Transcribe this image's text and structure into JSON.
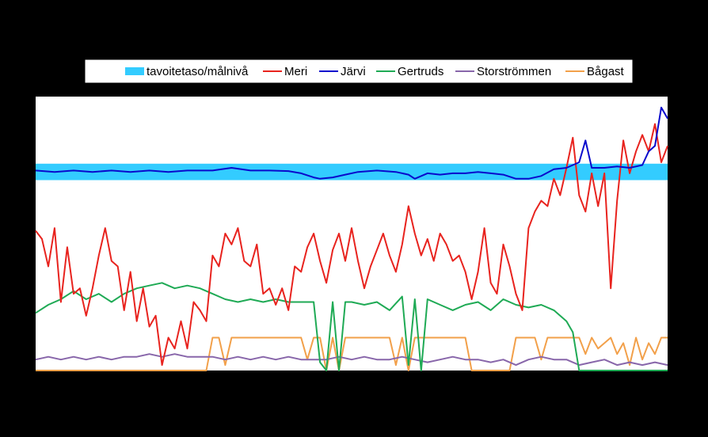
{
  "chart_data": {
    "type": "line",
    "title": "",
    "xlabel": "",
    "ylabel": "",
    "x_tick_labels": [],
    "y_tick_labels": [],
    "legend_position": "top",
    "target_band": {
      "name": "tavoitetaso/målnivå",
      "color": "#33CCFF",
      "range": [
        0.695,
        0.755
      ]
    },
    "x_range": [
      0,
      100
    ],
    "y_range": [
      0,
      1
    ],
    "series": [
      {
        "name": "Meri",
        "color": "#E8231E",
        "points": [
          [
            0,
            0.51
          ],
          [
            1,
            0.48
          ],
          [
            2,
            0.38
          ],
          [
            3,
            0.52
          ],
          [
            4,
            0.25
          ],
          [
            5,
            0.45
          ],
          [
            6,
            0.28
          ],
          [
            7,
            0.3
          ],
          [
            8,
            0.2
          ],
          [
            9,
            0.3
          ],
          [
            10,
            0.42
          ],
          [
            11,
            0.52
          ],
          [
            12,
            0.4
          ],
          [
            13,
            0.38
          ],
          [
            14,
            0.22
          ],
          [
            15,
            0.36
          ],
          [
            16,
            0.18
          ],
          [
            17,
            0.3
          ],
          [
            18,
            0.16
          ],
          [
            19,
            0.2
          ],
          [
            20,
            0.02
          ],
          [
            21,
            0.12
          ],
          [
            22,
            0.08
          ],
          [
            23,
            0.18
          ],
          [
            24,
            0.08
          ],
          [
            25,
            0.25
          ],
          [
            26,
            0.22
          ],
          [
            27,
            0.18
          ],
          [
            28,
            0.42
          ],
          [
            29,
            0.38
          ],
          [
            30,
            0.5
          ],
          [
            31,
            0.46
          ],
          [
            32,
            0.52
          ],
          [
            33,
            0.4
          ],
          [
            34,
            0.38
          ],
          [
            35,
            0.46
          ],
          [
            36,
            0.28
          ],
          [
            37,
            0.3
          ],
          [
            38,
            0.24
          ],
          [
            39,
            0.3
          ],
          [
            40,
            0.22
          ],
          [
            41,
            0.38
          ],
          [
            42,
            0.36
          ],
          [
            43,
            0.45
          ],
          [
            44,
            0.5
          ],
          [
            45,
            0.4
          ],
          [
            46,
            0.32
          ],
          [
            47,
            0.44
          ],
          [
            48,
            0.5
          ],
          [
            49,
            0.4
          ],
          [
            50,
            0.52
          ],
          [
            51,
            0.4
          ],
          [
            52,
            0.3
          ],
          [
            53,
            0.38
          ],
          [
            54,
            0.44
          ],
          [
            55,
            0.5
          ],
          [
            56,
            0.42
          ],
          [
            57,
            0.36
          ],
          [
            58,
            0.46
          ],
          [
            59,
            0.6
          ],
          [
            60,
            0.5
          ],
          [
            61,
            0.42
          ],
          [
            62,
            0.48
          ],
          [
            63,
            0.4
          ],
          [
            64,
            0.5
          ],
          [
            65,
            0.46
          ],
          [
            66,
            0.4
          ],
          [
            67,
            0.42
          ],
          [
            68,
            0.36
          ],
          [
            69,
            0.26
          ],
          [
            70,
            0.36
          ],
          [
            71,
            0.52
          ],
          [
            72,
            0.32
          ],
          [
            73,
            0.28
          ],
          [
            74,
            0.46
          ],
          [
            75,
            0.38
          ],
          [
            76,
            0.28
          ],
          [
            77,
            0.22
          ],
          [
            78,
            0.52
          ],
          [
            79,
            0.58
          ],
          [
            80,
            0.62
          ],
          [
            81,
            0.6
          ],
          [
            82,
            0.7
          ],
          [
            83,
            0.64
          ],
          [
            84,
            0.74
          ],
          [
            85,
            0.85
          ],
          [
            86,
            0.64
          ],
          [
            87,
            0.58
          ],
          [
            88,
            0.72
          ],
          [
            89,
            0.6
          ],
          [
            90,
            0.72
          ],
          [
            91,
            0.3
          ],
          [
            92,
            0.62
          ],
          [
            93,
            0.84
          ],
          [
            94,
            0.72
          ],
          [
            95,
            0.8
          ],
          [
            96,
            0.86
          ],
          [
            97,
            0.8
          ],
          [
            98,
            0.9
          ],
          [
            99,
            0.76
          ],
          [
            100,
            0.82
          ]
        ]
      },
      {
        "name": "Järvi",
        "color": "#0A0ACC",
        "points": [
          [
            0,
            0.73
          ],
          [
            3,
            0.725
          ],
          [
            6,
            0.73
          ],
          [
            9,
            0.725
          ],
          [
            12,
            0.73
          ],
          [
            15,
            0.725
          ],
          [
            18,
            0.73
          ],
          [
            21,
            0.725
          ],
          [
            24,
            0.73
          ],
          [
            28,
            0.73
          ],
          [
            31,
            0.74
          ],
          [
            34,
            0.73
          ],
          [
            37,
            0.73
          ],
          [
            40,
            0.728
          ],
          [
            42,
            0.72
          ],
          [
            44,
            0.705
          ],
          [
            45,
            0.7
          ],
          [
            47,
            0.705
          ],
          [
            49,
            0.715
          ],
          [
            51,
            0.725
          ],
          [
            54,
            0.73
          ],
          [
            57,
            0.725
          ],
          [
            59,
            0.715
          ],
          [
            60,
            0.7
          ],
          [
            62,
            0.72
          ],
          [
            64,
            0.715
          ],
          [
            66,
            0.72
          ],
          [
            68,
            0.72
          ],
          [
            70,
            0.725
          ],
          [
            72,
            0.72
          ],
          [
            74,
            0.715
          ],
          [
            76,
            0.7
          ],
          [
            78,
            0.7
          ],
          [
            80,
            0.71
          ],
          [
            82,
            0.735
          ],
          [
            84,
            0.74
          ],
          [
            86,
            0.76
          ],
          [
            87,
            0.84
          ],
          [
            88,
            0.74
          ],
          [
            90,
            0.74
          ],
          [
            92,
            0.745
          ],
          [
            94,
            0.74
          ],
          [
            96,
            0.75
          ],
          [
            97,
            0.8
          ],
          [
            98,
            0.82
          ],
          [
            99,
            0.96
          ],
          [
            100,
            0.92
          ]
        ]
      },
      {
        "name": "Gertruds",
        "color": "#1FAA55",
        "points": [
          [
            0,
            0.21
          ],
          [
            2,
            0.24
          ],
          [
            4,
            0.26
          ],
          [
            6,
            0.29
          ],
          [
            8,
            0.26
          ],
          [
            10,
            0.28
          ],
          [
            12,
            0.25
          ],
          [
            14,
            0.28
          ],
          [
            16,
            0.3
          ],
          [
            18,
            0.31
          ],
          [
            20,
            0.32
          ],
          [
            22,
            0.3
          ],
          [
            24,
            0.31
          ],
          [
            26,
            0.3
          ],
          [
            28,
            0.28
          ],
          [
            30,
            0.26
          ],
          [
            32,
            0.25
          ],
          [
            34,
            0.26
          ],
          [
            36,
            0.25
          ],
          [
            38,
            0.26
          ],
          [
            40,
            0.25
          ],
          [
            42,
            0.25
          ],
          [
            44,
            0.25
          ],
          [
            45,
            0.03
          ],
          [
            46,
            0.0
          ],
          [
            47,
            0.25
          ],
          [
            48,
            0.0
          ],
          [
            49,
            0.25
          ],
          [
            50,
            0.25
          ],
          [
            52,
            0.24
          ],
          [
            54,
            0.25
          ],
          [
            56,
            0.22
          ],
          [
            58,
            0.27
          ],
          [
            59,
            0.02
          ],
          [
            60,
            0.26
          ],
          [
            61,
            0.0
          ],
          [
            62,
            0.26
          ],
          [
            64,
            0.24
          ],
          [
            66,
            0.22
          ],
          [
            68,
            0.24
          ],
          [
            70,
            0.25
          ],
          [
            72,
            0.22
          ],
          [
            74,
            0.26
          ],
          [
            76,
            0.24
          ],
          [
            78,
            0.23
          ],
          [
            80,
            0.24
          ],
          [
            82,
            0.22
          ],
          [
            84,
            0.18
          ],
          [
            85,
            0.14
          ],
          [
            86,
            0.0
          ],
          [
            100,
            0.0
          ]
        ]
      },
      {
        "name": "Storströmmen",
        "color": "#8866AA",
        "points": [
          [
            0,
            0.04
          ],
          [
            2,
            0.05
          ],
          [
            4,
            0.04
          ],
          [
            6,
            0.05
          ],
          [
            8,
            0.04
          ],
          [
            10,
            0.05
          ],
          [
            12,
            0.04
          ],
          [
            14,
            0.05
          ],
          [
            16,
            0.05
          ],
          [
            18,
            0.06
          ],
          [
            20,
            0.05
          ],
          [
            22,
            0.06
          ],
          [
            24,
            0.05
          ],
          [
            26,
            0.05
          ],
          [
            28,
            0.05
          ],
          [
            30,
            0.04
          ],
          [
            32,
            0.05
          ],
          [
            34,
            0.04
          ],
          [
            36,
            0.05
          ],
          [
            38,
            0.04
          ],
          [
            40,
            0.05
          ],
          [
            42,
            0.04
          ],
          [
            44,
            0.04
          ],
          [
            46,
            0.04
          ],
          [
            48,
            0.05
          ],
          [
            50,
            0.04
          ],
          [
            52,
            0.05
          ],
          [
            54,
            0.04
          ],
          [
            56,
            0.04
          ],
          [
            58,
            0.05
          ],
          [
            60,
            0.04
          ],
          [
            62,
            0.03
          ],
          [
            64,
            0.04
          ],
          [
            66,
            0.05
          ],
          [
            68,
            0.04
          ],
          [
            70,
            0.04
          ],
          [
            72,
            0.03
          ],
          [
            74,
            0.04
          ],
          [
            76,
            0.02
          ],
          [
            78,
            0.04
          ],
          [
            80,
            0.05
          ],
          [
            82,
            0.04
          ],
          [
            84,
            0.04
          ],
          [
            86,
            0.02
          ],
          [
            88,
            0.03
          ],
          [
            90,
            0.04
          ],
          [
            92,
            0.02
          ],
          [
            94,
            0.03
          ],
          [
            96,
            0.02
          ],
          [
            98,
            0.03
          ],
          [
            100,
            0.02
          ]
        ]
      },
      {
        "name": "Bågast",
        "color": "#F2A04A",
        "points": [
          [
            0,
            0.0
          ],
          [
            27,
            0.0
          ],
          [
            28,
            0.12
          ],
          [
            29,
            0.12
          ],
          [
            30,
            0.02
          ],
          [
            31,
            0.12
          ],
          [
            42,
            0.12
          ],
          [
            43,
            0.04
          ],
          [
            44,
            0.12
          ],
          [
            45,
            0.12
          ],
          [
            46,
            0.0
          ],
          [
            47,
            0.12
          ],
          [
            48,
            0.0
          ],
          [
            49,
            0.12
          ],
          [
            56,
            0.12
          ],
          [
            57,
            0.02
          ],
          [
            58,
            0.12
          ],
          [
            59,
            0.0
          ],
          [
            60,
            0.12
          ],
          [
            68,
            0.12
          ],
          [
            69,
            0.0
          ],
          [
            70,
            0.0
          ],
          [
            75,
            0.0
          ],
          [
            76,
            0.12
          ],
          [
            79,
            0.12
          ],
          [
            80,
            0.04
          ],
          [
            81,
            0.12
          ],
          [
            86,
            0.12
          ],
          [
            87,
            0.06
          ],
          [
            88,
            0.12
          ],
          [
            89,
            0.08
          ],
          [
            90,
            0.1
          ],
          [
            91,
            0.12
          ],
          [
            92,
            0.06
          ],
          [
            93,
            0.1
          ],
          [
            94,
            0.02
          ],
          [
            95,
            0.12
          ],
          [
            96,
            0.04
          ],
          [
            97,
            0.1
          ],
          [
            98,
            0.06
          ],
          [
            99,
            0.12
          ],
          [
            100,
            0.12
          ]
        ]
      }
    ]
  }
}
